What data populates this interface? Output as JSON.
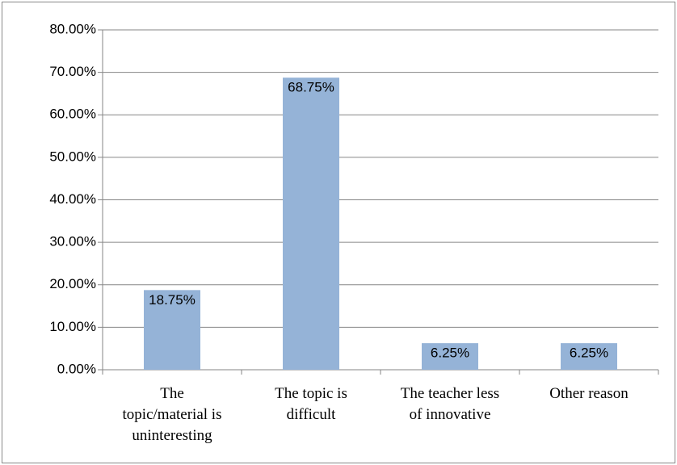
{
  "chart_data": {
    "type": "bar",
    "categories": [
      "The topic/material is uninteresting",
      "The topic is difficult",
      "The teacher less of innovative",
      "Other reason"
    ],
    "values": [
      18.75,
      68.75,
      6.25,
      6.25
    ],
    "value_labels": [
      "18.75%",
      "68.75%",
      "6.25%",
      "6.25%"
    ],
    "color": "#95b3d7",
    "ylim": [
      0,
      80
    ],
    "yticks": [
      {
        "value": 0,
        "label": "0.00%"
      },
      {
        "value": 10,
        "label": "10.00%"
      },
      {
        "value": 20,
        "label": "20.00%"
      },
      {
        "value": 30,
        "label": "30.00%"
      },
      {
        "value": 40,
        "label": "40.00%"
      },
      {
        "value": 50,
        "label": "50.00%"
      },
      {
        "value": 60,
        "label": "60.00%"
      },
      {
        "value": 70,
        "label": "70.00%"
      },
      {
        "value": 80,
        "label": "80.00%"
      }
    ],
    "grid": true
  }
}
